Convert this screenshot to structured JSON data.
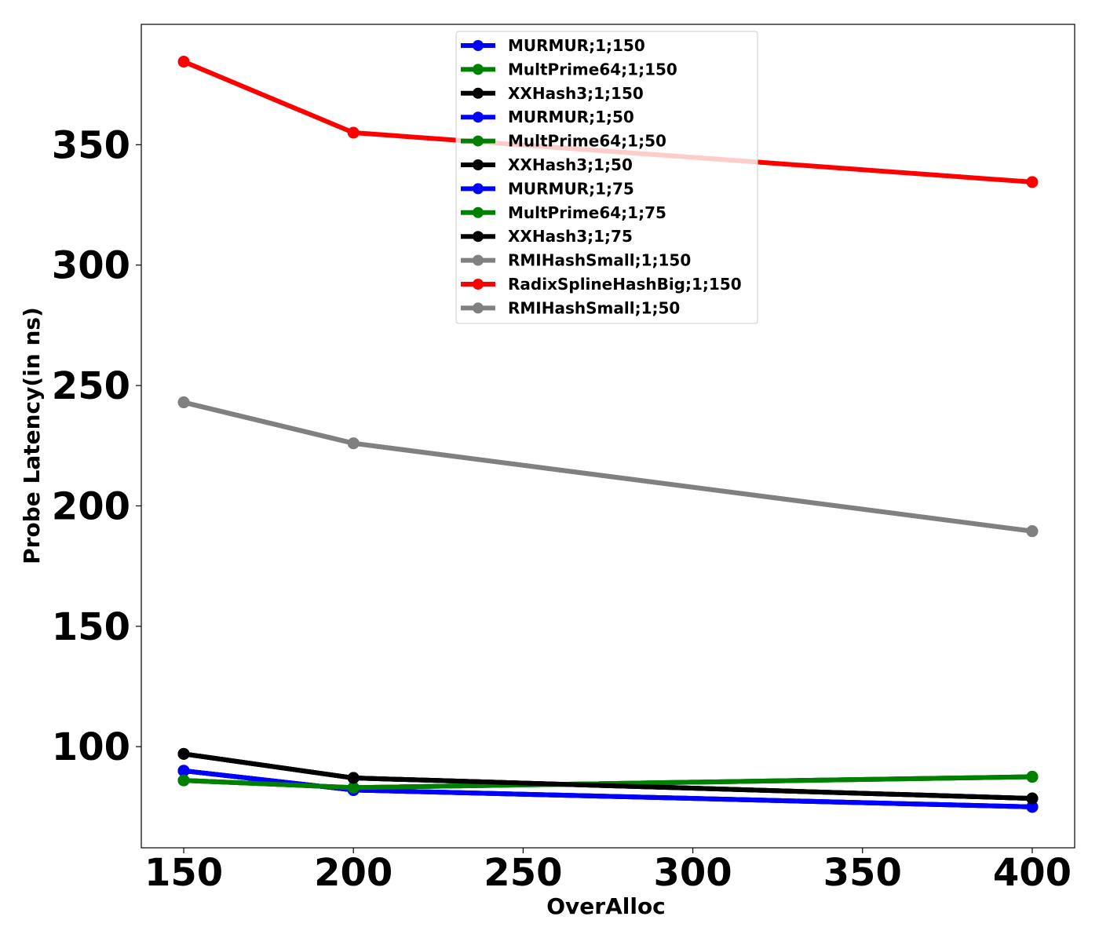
{
  "chart_data": {
    "type": "line",
    "xlabel": "OverAlloc",
    "ylabel": "Probe Latency(in ns)",
    "xlim": [
      137.5,
      412.5
    ],
    "ylim": [
      58,
      400
    ],
    "xticks": [
      150,
      200,
      250,
      300,
      350,
      400
    ],
    "yticks": [
      100,
      150,
      200,
      250,
      300,
      350
    ],
    "grid": false,
    "legend_position": "top-center",
    "series": [
      {
        "name": "MURMUR;1;150",
        "color": "#0000ff",
        "x": [
          150,
          200,
          400
        ],
        "y": [
          90,
          82,
          75
        ]
      },
      {
        "name": "MultPrime64;1;150",
        "color": "#008000",
        "x": [
          150,
          200,
          400
        ],
        "y": [
          86,
          83,
          87.5
        ]
      },
      {
        "name": "XXHash3;1;150",
        "color": "#000000",
        "x": [
          150,
          200,
          400
        ],
        "y": [
          97,
          87,
          78.5
        ]
      },
      {
        "name": "MURMUR;1;50",
        "color": "#0000ff",
        "x": [
          150,
          200,
          400
        ],
        "y": [
          90,
          82,
          75
        ]
      },
      {
        "name": "MultPrime64;1;50",
        "color": "#008000",
        "x": [
          150,
          200,
          400
        ],
        "y": [
          86,
          83,
          87.5
        ]
      },
      {
        "name": "XXHash3;1;50",
        "color": "#000000",
        "x": [
          150,
          200,
          400
        ],
        "y": [
          97,
          87,
          78.5
        ]
      },
      {
        "name": "MURMUR;1;75",
        "color": "#0000ff",
        "x": [
          150,
          200,
          400
        ],
        "y": [
          90,
          82,
          75
        ]
      },
      {
        "name": "MultPrime64;1;75",
        "color": "#008000",
        "x": [
          150,
          200,
          400
        ],
        "y": [
          86,
          83,
          87.5
        ]
      },
      {
        "name": "XXHash3;1;75",
        "color": "#000000",
        "x": [
          150,
          200,
          400
        ],
        "y": [
          97,
          87,
          78.5
        ]
      },
      {
        "name": "RMIHashSmall;1;150",
        "color": "#808080",
        "x": [
          150,
          200,
          400
        ],
        "y": [
          243,
          226,
          189.5
        ]
      },
      {
        "name": "RadixSplineHashBig;1;150",
        "color": "#ff0000",
        "x": [
          150,
          200,
          400
        ],
        "y": [
          384.5,
          355,
          334.5
        ]
      },
      {
        "name": "RMIHashSmall;1;50",
        "color": "#808080",
        "x": [
          150,
          200,
          400
        ],
        "y": [
          243,
          226,
          189.5
        ]
      }
    ]
  }
}
